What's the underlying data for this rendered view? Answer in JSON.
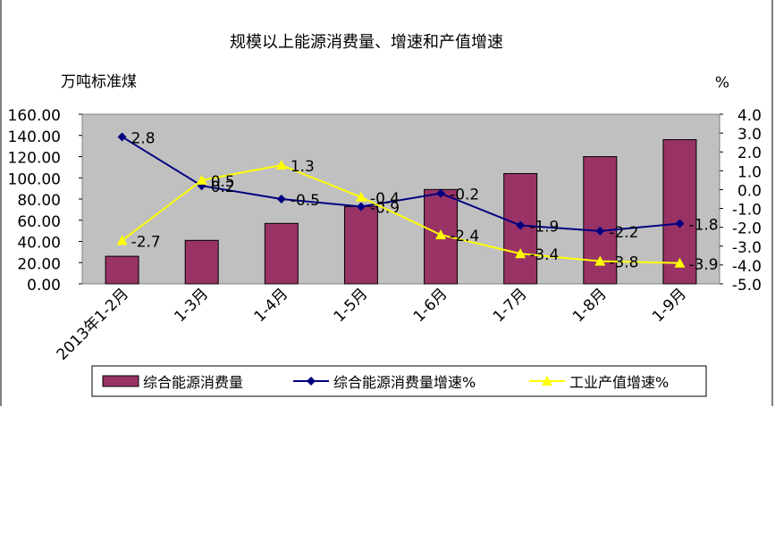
{
  "chart_data": {
    "type": "bar",
    "title": "规模以上能源消费量、增速和产值增速",
    "ylabel_left": "万吨标准煤",
    "ylabel_right": "%",
    "categories": [
      "2013年1-2月",
      "1-3月",
      "1-4月",
      "1-5月",
      "1-6月",
      "1-7月",
      "1-8月",
      "1-9月"
    ],
    "ylim_left": [
      0,
      160
    ],
    "yticks_left": [
      "0.00",
      "20.00",
      "40.00",
      "60.00",
      "80.00",
      "100.00",
      "120.00",
      "140.00",
      "160.00"
    ],
    "ylim_right": [
      -5,
      4
    ],
    "yticks_right": [
      "-5.0",
      "-4.0",
      "-3.0",
      "-2.0",
      "-1.0",
      "0.0",
      "1.0",
      "2.0",
      "3.0",
      "4.0"
    ],
    "series": [
      {
        "name": "综合能源消费量",
        "kind": "bar",
        "axis": "left",
        "color": "#993366",
        "values": [
          26,
          41,
          57,
          73,
          89,
          104,
          120,
          136
        ]
      },
      {
        "name": "综合能源消费量增速%",
        "kind": "line",
        "axis": "right",
        "color": "#000080",
        "marker": "diamond",
        "values": [
          2.8,
          0.2,
          -0.5,
          -0.9,
          -0.2,
          -1.9,
          -2.2,
          -1.8
        ],
        "labels": [
          "2.8",
          "0.2",
          "-0.5",
          "-0.9",
          "-0.2",
          "-1.9",
          "-2.2",
          "-1.8"
        ]
      },
      {
        "name": "工业产值增速%",
        "kind": "line",
        "axis": "right",
        "color": "#FFFF00",
        "marker": "triangle",
        "values": [
          -2.7,
          0.5,
          1.3,
          -0.4,
          -2.4,
          -3.4,
          -3.8,
          -3.9
        ],
        "labels": [
          "-2.7",
          "0.5",
          "1.3",
          "-0.4",
          "-2.4",
          "-3.4",
          "-3.8",
          "-3.9"
        ]
      }
    ],
    "plot_background": "#C0C0C0",
    "legend_position": "bottom",
    "grid": false
  }
}
